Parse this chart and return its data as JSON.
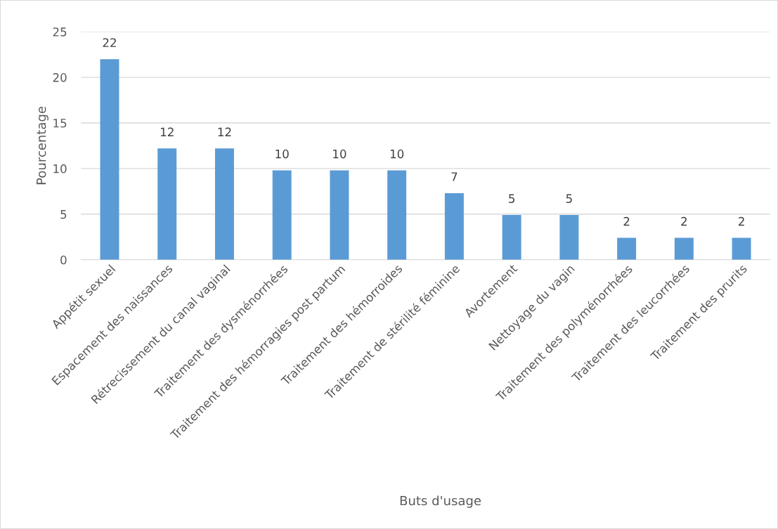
{
  "chart_data": {
    "type": "bar",
    "xlabel": "Buts d'usage",
    "ylabel": "Pourcentage",
    "categories": [
      "Appétit sexuel",
      "Espacement des naissances",
      "Rétrecissement du canal vaginal",
      "Traitement des dysménorrhées",
      "Traitement des hémorragies post partum",
      "Traitement des hémorroides",
      "Traitement de stérilité féminine",
      "Avortement",
      "Nettoyage du vagin",
      "Traitement des polyménorrhées",
      "Traitement des leucorrhées",
      "Traitement des prurits"
    ],
    "values": [
      22,
      12.2,
      12.2,
      9.8,
      9.8,
      9.8,
      7.3,
      4.9,
      4.9,
      2.4,
      2.4,
      2.4
    ],
    "value_labels": [
      "22",
      "12",
      "12",
      "10",
      "10",
      "10",
      "7",
      "5",
      "5",
      "2",
      "2",
      "2"
    ],
    "color": "#5b9bd5",
    "ylim": [
      0,
      25
    ],
    "yticks": [
      0,
      5,
      10,
      15,
      20,
      25
    ],
    "grid": "y",
    "legend": false
  }
}
